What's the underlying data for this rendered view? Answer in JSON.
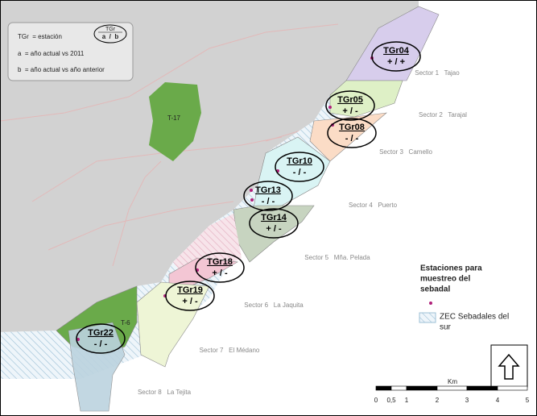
{
  "legend_top": {
    "items": [
      "TGr  = estación",
      "a  = año actual vs 2011",
      "b  = año actual vs año anterior"
    ],
    "symbol_top": "TGr",
    "symbol_bottom": "a  /  b"
  },
  "areas": [
    "T-17",
    "T-6"
  ],
  "stations": [
    {
      "label": "TGr04",
      "value": "+ / +"
    },
    {
      "label": "TGr05",
      "value": "+ / -"
    },
    {
      "label": "TGr08",
      "value": "- / -"
    },
    {
      "label": "TGr10",
      "value": "- / -"
    },
    {
      "label": "TGr13",
      "value": "- / -"
    },
    {
      "label": "TGr14",
      "value": "+ / -"
    },
    {
      "label": "TGr18",
      "value": "+ / -"
    },
    {
      "label": "TGr19",
      "value": "+ / -"
    },
    {
      "label": "TGr22",
      "value": "- / -"
    }
  ],
  "sectors": [
    "Sector 1   Tajao",
    "Sector 2   Tarajal",
    "Sector 3   Camello",
    "Sector 4   Puerto",
    "Sector 5   Mña. Pelada",
    "Sector 6   La Jaquita",
    "Sector 7   El Médano",
    "Sector 8   La Tejita"
  ],
  "legend_right": {
    "title": [
      "Estaciones para",
      "muestreo del",
      "sebadal"
    ],
    "zec": [
      "ZEC Sebadales del",
      "sur"
    ]
  },
  "scale": {
    "unit": "Km",
    "ticks": [
      "0",
      "0,5",
      "1",
      "2",
      "3",
      "4",
      "5"
    ]
  }
}
